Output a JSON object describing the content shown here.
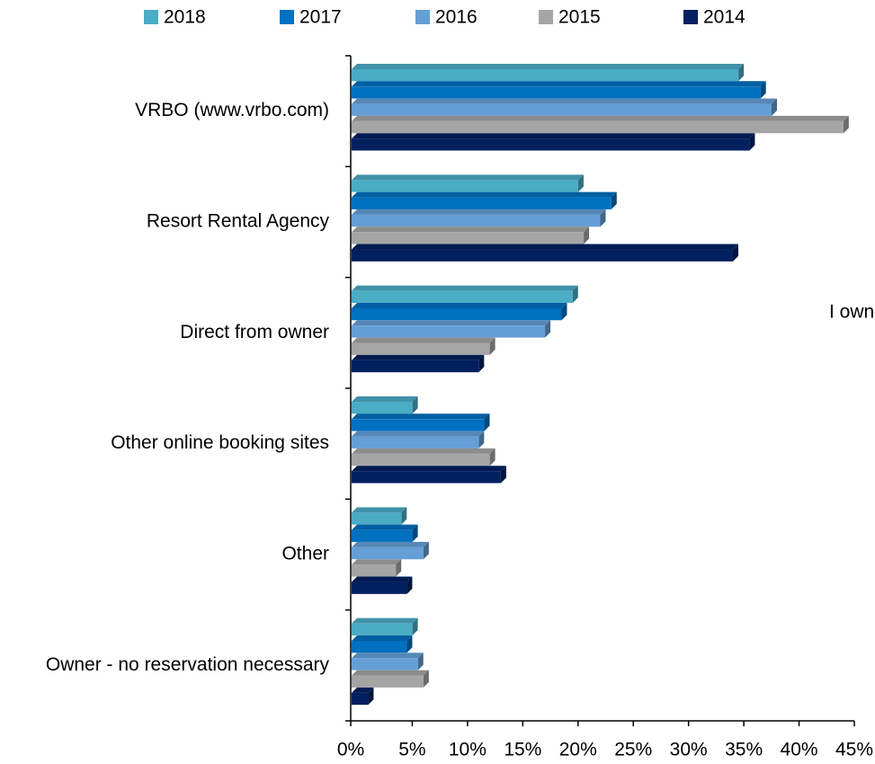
{
  "chart_data": {
    "type": "bar",
    "orientation": "horizontal",
    "categories": [
      "VRBO (www.vrbo.com)",
      "Resort Rental Agency",
      "Direct from owner",
      "Other online booking sites",
      "Other",
      "Owner - no reservation necessary"
    ],
    "series": [
      {
        "name": "2018",
        "color": "#4bacc6",
        "values": [
          35,
          20.5,
          20,
          5.5,
          4.5,
          5.5
        ]
      },
      {
        "name": "2017",
        "color": "#0070c0",
        "values": [
          37,
          23.5,
          19,
          12,
          5.5,
          5
        ]
      },
      {
        "name": "2016",
        "color": "#659fd6",
        "values": [
          38,
          22.5,
          17.5,
          11.5,
          6.5,
          6
        ]
      },
      {
        "name": "2015",
        "color": "#a5a5a5",
        "values": [
          44.5,
          21,
          12.5,
          12.5,
          4,
          6.5
        ]
      },
      {
        "name": "2014",
        "color": "#002060",
        "values": [
          36,
          34.5,
          11.5,
          13.5,
          5,
          1.5
        ]
      }
    ],
    "xlim": [
      0,
      45
    ],
    "xticks": [
      {
        "value": 0,
        "label": "0%"
      },
      {
        "value": 5,
        "label": "5%"
      },
      {
        "value": 10,
        "label": "10%"
      },
      {
        "value": 15,
        "label": "15%"
      },
      {
        "value": 20,
        "label": "20%"
      },
      {
        "value": 25,
        "label": "25%"
      },
      {
        "value": 30,
        "label": "30%"
      },
      {
        "value": 35,
        "label": "35%"
      },
      {
        "value": 40,
        "label": "40%"
      },
      {
        "value": 45,
        "label": "45%"
      }
    ],
    "annotation": "I own",
    "legend": "top",
    "grid": false
  }
}
